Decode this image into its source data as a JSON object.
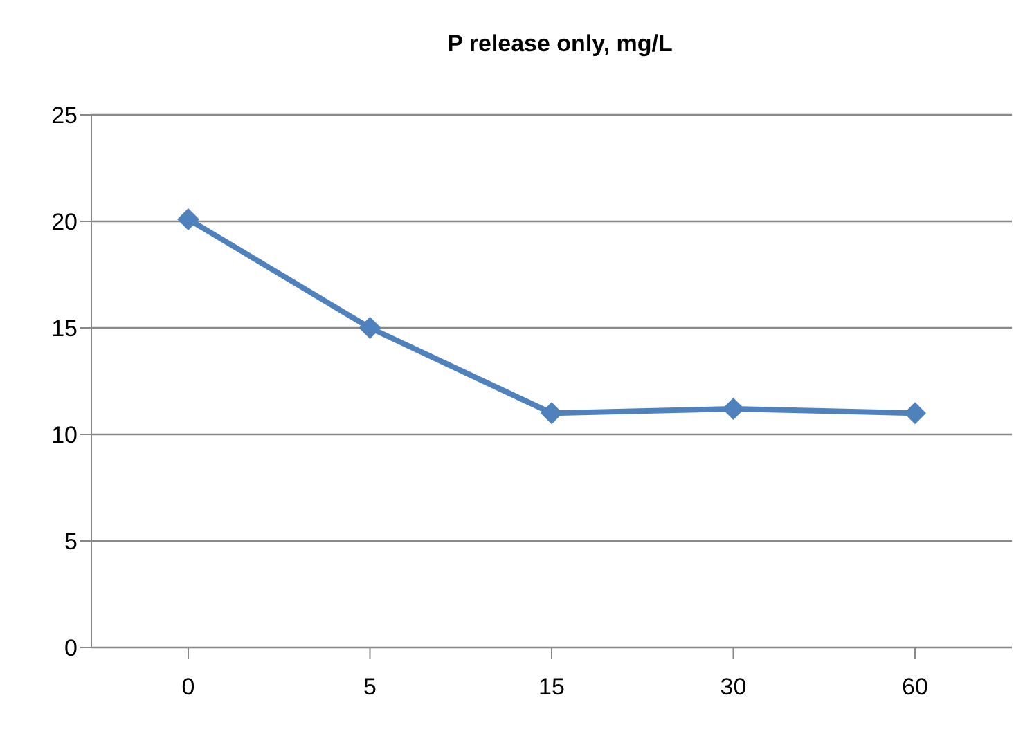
{
  "chart_data": {
    "type": "line",
    "title": "P release only, mg/L",
    "categories": [
      "0",
      "5",
      "15",
      "30",
      "60"
    ],
    "series": [
      {
        "color": "#4f81bd",
        "values": [
          20.1,
          15,
          11,
          11.2,
          11
        ]
      }
    ],
    "ylim": [
      0,
      25
    ],
    "yticks": [
      0,
      5,
      10,
      15,
      20,
      25
    ],
    "grid": "y",
    "marker": "diamond",
    "line_style": "solid"
  }
}
